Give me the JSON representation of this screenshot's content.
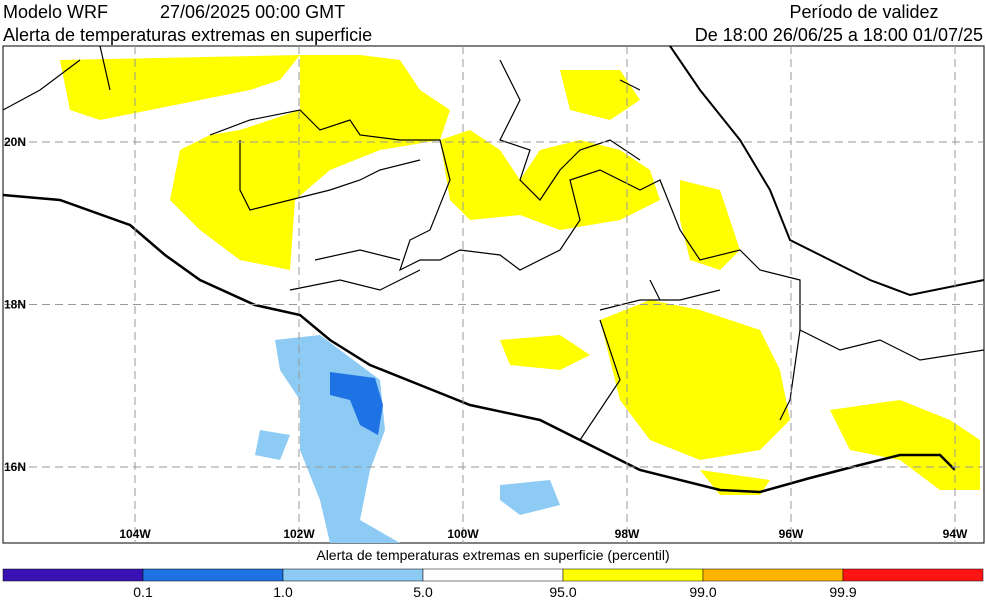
{
  "header": {
    "model": "Modelo WRF",
    "date": "27/06/2025 00:00 GMT",
    "title": "Alerta de temperaturas extremas en superficie",
    "validity_title": "Período de validez",
    "validity_range": "De 18:00 26/06/25 a 18:00 01/07/25"
  },
  "map": {
    "lat_labels": [
      "20N",
      "18N",
      "16N"
    ],
    "lon_labels": [
      "104W",
      "102W",
      "100W",
      "98W",
      "96W",
      "94W"
    ]
  },
  "colorbar": {
    "title": "Alerta de temperaturas extremas en superficie (percentil)",
    "labels": [
      "0.1",
      "1.0",
      "5.0",
      "95.0",
      "99.0",
      "99.9"
    ],
    "colors": [
      "#3a12b4",
      "#1f72e4",
      "#8dcaf4",
      "#ffffff",
      "#ffff00",
      "#ffb400",
      "#ff1414"
    ]
  }
}
